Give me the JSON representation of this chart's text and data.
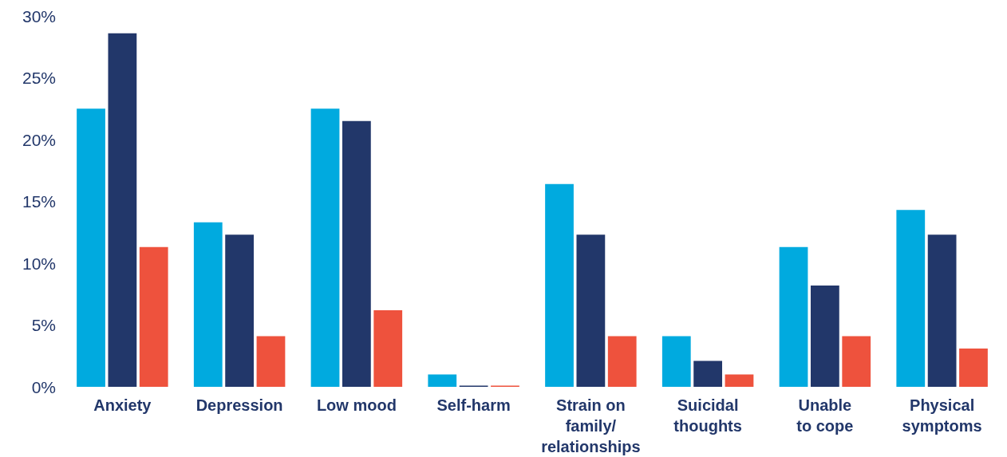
{
  "chart_data": {
    "type": "bar",
    "categories": [
      "Anxiety",
      "Depression",
      "Low mood",
      "Self-harm",
      "Strain on\nfamily/\nrelationships",
      "Suicidal\nthoughts",
      "Unable\nto cope",
      "Physical\nsymptoms"
    ],
    "series": [
      {
        "color": "#00aadf",
        "values": [
          22.5,
          13.3,
          22.5,
          1.0,
          16.4,
          4.1,
          11.3,
          14.3
        ]
      },
      {
        "color": "#22376a",
        "values": [
          28.6,
          12.3,
          21.5,
          0.1,
          12.3,
          2.1,
          8.2,
          12.3
        ]
      },
      {
        "color": "#ee523d",
        "values": [
          11.3,
          4.1,
          6.2,
          0.1,
          4.1,
          1.0,
          4.1,
          3.1
        ]
      }
    ],
    "ylim": [
      0,
      30
    ],
    "yticks": [
      {
        "value": 0,
        "label": "0%"
      },
      {
        "value": 5,
        "label": "5%"
      },
      {
        "value": 10,
        "label": "10%"
      },
      {
        "value": 15,
        "label": "15%"
      },
      {
        "value": 20,
        "label": "20%"
      },
      {
        "value": 25,
        "label": "25%"
      },
      {
        "value": 30,
        "label": "30%"
      }
    ],
    "grid": false
  }
}
